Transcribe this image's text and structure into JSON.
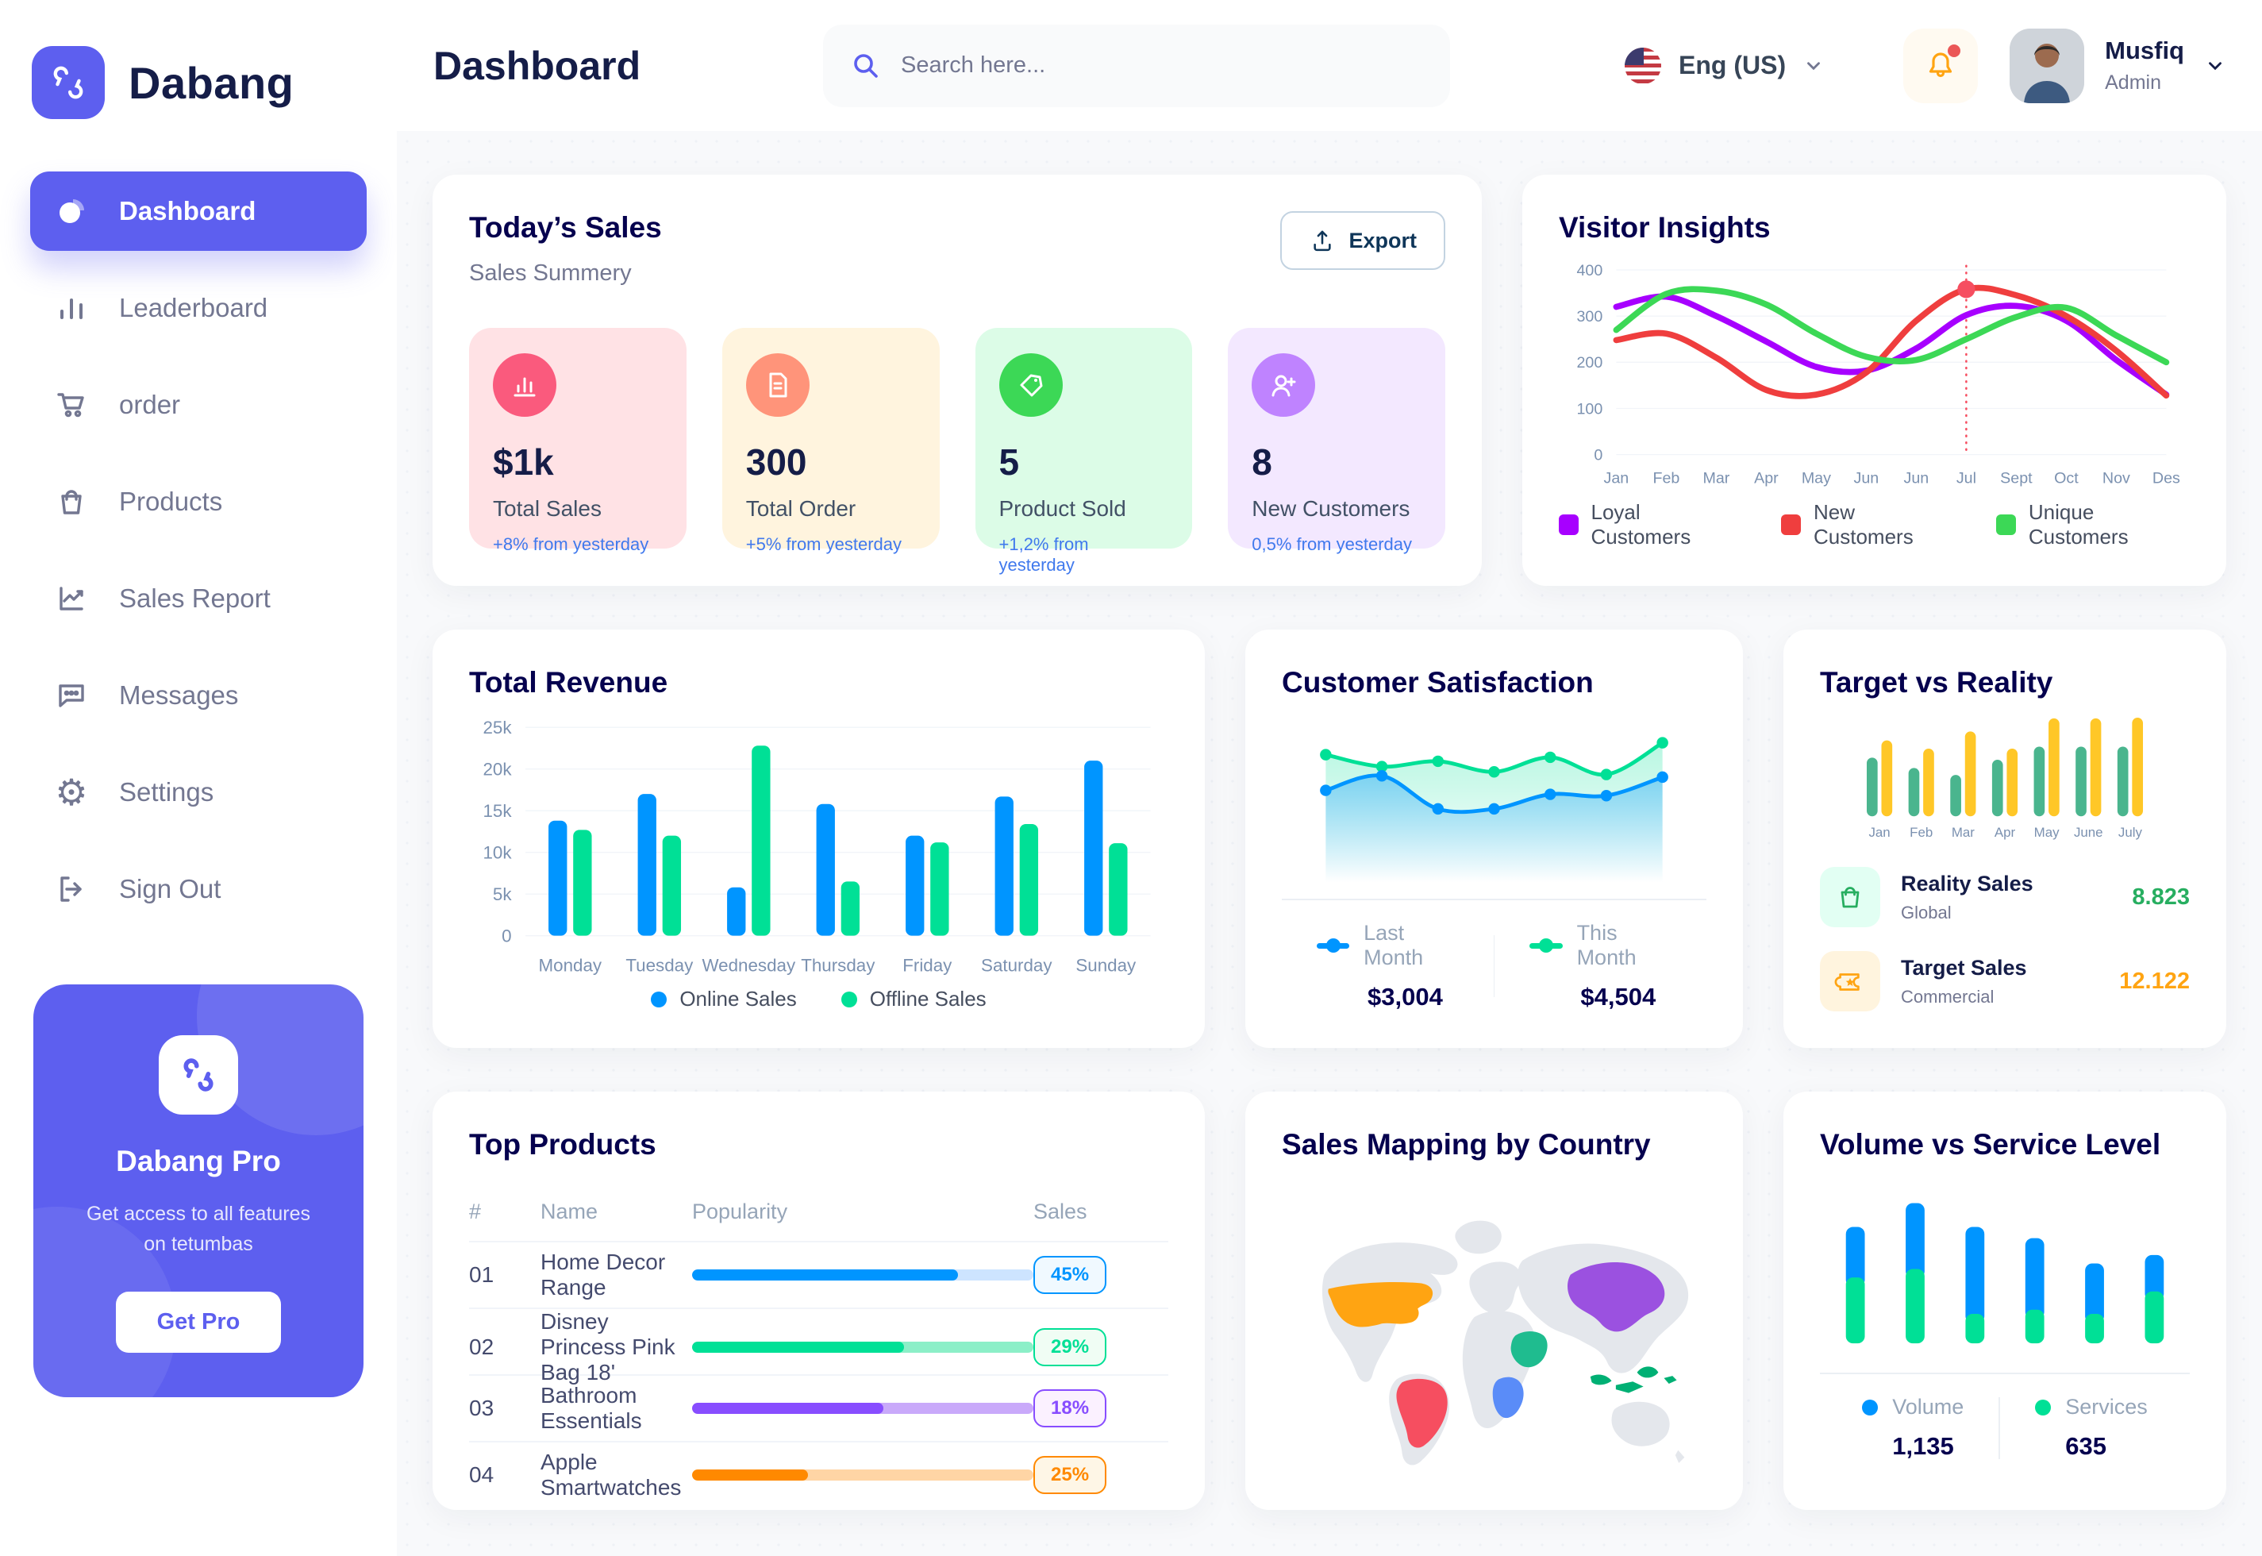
{
  "header": {
    "title": "Dashboard",
    "search_placeholder": "Search here...",
    "language": "Eng (US)",
    "user_name": "Musfiq",
    "user_role": "Admin"
  },
  "sidebar": {
    "brand": "Dabang",
    "items": [
      {
        "label": "Dashboard"
      },
      {
        "label": "Leaderboard"
      },
      {
        "label": "order"
      },
      {
        "label": "Products"
      },
      {
        "label": "Sales Report"
      },
      {
        "label": "Messages"
      },
      {
        "label": "Settings"
      },
      {
        "label": "Sign Out"
      }
    ],
    "pro_title": "Dabang Pro",
    "pro_subtitle": "Get access to all features on tetumbas",
    "pro_button": "Get Pro"
  },
  "today_sales": {
    "title": "Today’s Sales",
    "subtitle": "Sales Summery",
    "export_label": "Export",
    "cards": [
      {
        "value": "$1k",
        "label": "Total Sales",
        "delta": "+8% from yesterday",
        "bg": "#FFE2E5",
        "icon_bg": "#FA5A7D"
      },
      {
        "value": "300",
        "label": "Total Order",
        "delta": "+5% from yesterday",
        "bg": "#FFF4DE",
        "icon_bg": "#FF947A"
      },
      {
        "value": "5",
        "label": "Product Sold",
        "delta": "+1,2% from yesterday",
        "bg": "#DCFCE7",
        "icon_bg": "#3CD856"
      },
      {
        "value": "8",
        "label": "New Customers",
        "delta": "0,5% from yesterday",
        "bg": "#F3E8FF",
        "icon_bg": "#BF83FF"
      }
    ]
  },
  "chart_data": [
    {
      "id": "visitor_insights",
      "type": "line",
      "title": "Visitor Insights",
      "x": [
        "Jan",
        "Feb",
        "Mar",
        "Apr",
        "May",
        "Jun",
        "Jun",
        "Jul",
        "Sept",
        "Oct",
        "Nov",
        "Des"
      ],
      "ylim": [
        0,
        400
      ],
      "yticks": [
        0,
        100,
        200,
        300,
        400
      ],
      "grid": true,
      "legend_position": "bottom",
      "series": [
        {
          "name": "Loyal Customers",
          "color": "#A700FF",
          "values": [
            320,
            342,
            300,
            245,
            190,
            182,
            230,
            302,
            322,
            290,
            205,
            130
          ]
        },
        {
          "name": "New Customers",
          "color": "#EF3E3E",
          "values": [
            248,
            262,
            210,
            140,
            130,
            178,
            290,
            358,
            345,
            300,
            225,
            128
          ]
        },
        {
          "name": "Unique Customers",
          "color": "#3CD856",
          "values": [
            270,
            348,
            355,
            325,
            262,
            212,
            205,
            250,
            298,
            318,
            258,
            200
          ]
        }
      ],
      "marker": {
        "series": "New Customers",
        "x_index": 7,
        "value": 358,
        "color": "#F64E60"
      }
    },
    {
      "id": "total_revenue",
      "type": "bar",
      "title": "Total Revenue",
      "categories": [
        "Monday",
        "Tuesday",
        "Wednesday",
        "Thursday",
        "Friday",
        "Saturday",
        "Sunday"
      ],
      "ylim": [
        0,
        25
      ],
      "yticks": [
        "0",
        "5k",
        "10k",
        "15k",
        "20k",
        "25k"
      ],
      "grid": true,
      "legend_position": "bottom",
      "series": [
        {
          "name": "Online Sales",
          "color": "#0095FF",
          "values": [
            13.8,
            17,
            5.8,
            15.8,
            12,
            16.7,
            21
          ]
        },
        {
          "name": "Offline Sales",
          "color": "#00E096",
          "values": [
            12.7,
            12,
            22.8,
            6.5,
            11.2,
            13.4,
            11.1
          ]
        }
      ]
    },
    {
      "id": "customer_satisfaction",
      "type": "area",
      "title": "Customer Satisfaction",
      "ylim": [
        0,
        5.5
      ],
      "grid": false,
      "legend_position": "bottom",
      "series": [
        {
          "name": "Last Month",
          "color": "#0095FF",
          "total": "$3,004",
          "values": [
            3.0,
            3.55,
            2.3,
            2.3,
            2.85,
            2.8,
            3.5
          ]
        },
        {
          "name": "This Month",
          "color": "#00E096",
          "total": "$4,504",
          "values": [
            4.35,
            3.9,
            4.1,
            3.7,
            4.25,
            3.6,
            4.8
          ]
        }
      ]
    },
    {
      "id": "target_vs_reality",
      "type": "bar",
      "title": "Target vs Reality",
      "categories": [
        "Jan",
        "Feb",
        "Mar",
        "Apr",
        "May",
        "June",
        "July"
      ],
      "ylim": [
        0,
        15
      ],
      "grid": false,
      "series": [
        {
          "name": "Reality Sales",
          "color": "#4AB58E",
          "values": [
            8.5,
            7,
            6,
            8.2,
            10.1,
            10.1,
            10.1
          ]
        },
        {
          "name": "Target Sales",
          "color": "#FFC727",
          "values": [
            11,
            9.8,
            12.3,
            9.8,
            14.2,
            14.2,
            14.3
          ]
        }
      ],
      "legend": [
        {
          "name": "Reality Sales",
          "sub": "Global",
          "value": "8.823",
          "value_color": "#27AE60",
          "icon_bg": "#E2FFF3"
        },
        {
          "name": "Target Sales",
          "sub": "Commercial",
          "value": "12.122",
          "value_color": "#FFA412",
          "icon_bg": "#FFF4DE"
        }
      ]
    },
    {
      "id": "volume_service",
      "type": "stacked-bar",
      "title": "Volume vs Service Level",
      "ylim": [
        0,
        110
      ],
      "legend_position": "bottom",
      "series": [
        {
          "name": "Volume",
          "color": "#0095FF",
          "total": "1,135",
          "values": [
            36,
            47,
            62,
            51,
            36,
            26
          ]
        },
        {
          "name": "Services",
          "color": "#00E096",
          "total": "635",
          "values": [
            47,
            53,
            21,
            24,
            21,
            37
          ]
        }
      ]
    }
  ],
  "top_products": {
    "title": "Top Products",
    "headers": [
      "#",
      "Name",
      "Popularity",
      "Sales"
    ],
    "rows": [
      {
        "num": "01",
        "name": "Home Decor Range",
        "sales": "45%",
        "fill": "78%",
        "color": "#0095FF",
        "track": "#CDE4FF",
        "badge_bg": "#F0F9FF",
        "badge_border": "#0095FF"
      },
      {
        "num": "02",
        "name": "Disney Princess Pink Bag 18'",
        "sales": "29%",
        "fill": "62%",
        "color": "#00E096",
        "track": "#8CEFC8",
        "badge_bg": "#F0FDF4",
        "badge_border": "#00E096"
      },
      {
        "num": "03",
        "name": "Bathroom Essentials",
        "sales": "18%",
        "fill": "56%",
        "color": "#884DFF",
        "track": "#C9A9FA",
        "badge_bg": "#FBF1FF",
        "badge_border": "#884DFF"
      },
      {
        "num": "04",
        "name": "Apple Smartwatches",
        "sales": "25%",
        "fill": "34%",
        "color": "#FF8900",
        "track": "#FFD5A5",
        "badge_bg": "#FEF6E6",
        "badge_border": "#FF8900"
      }
    ]
  },
  "sales_mapping": {
    "title": "Sales Mapping by Country",
    "countries": [
      {
        "name": "United States",
        "color": "#FFA412"
      },
      {
        "name": "Brazil",
        "color": "#F64E60"
      },
      {
        "name": "Saudi Arabia",
        "color": "#1FBC8F"
      },
      {
        "name": "DR Congo",
        "color": "#5A8CF8"
      },
      {
        "name": "China",
        "color": "#9B51E0"
      },
      {
        "name": "Indonesia",
        "color": "#00B074"
      }
    ]
  }
}
